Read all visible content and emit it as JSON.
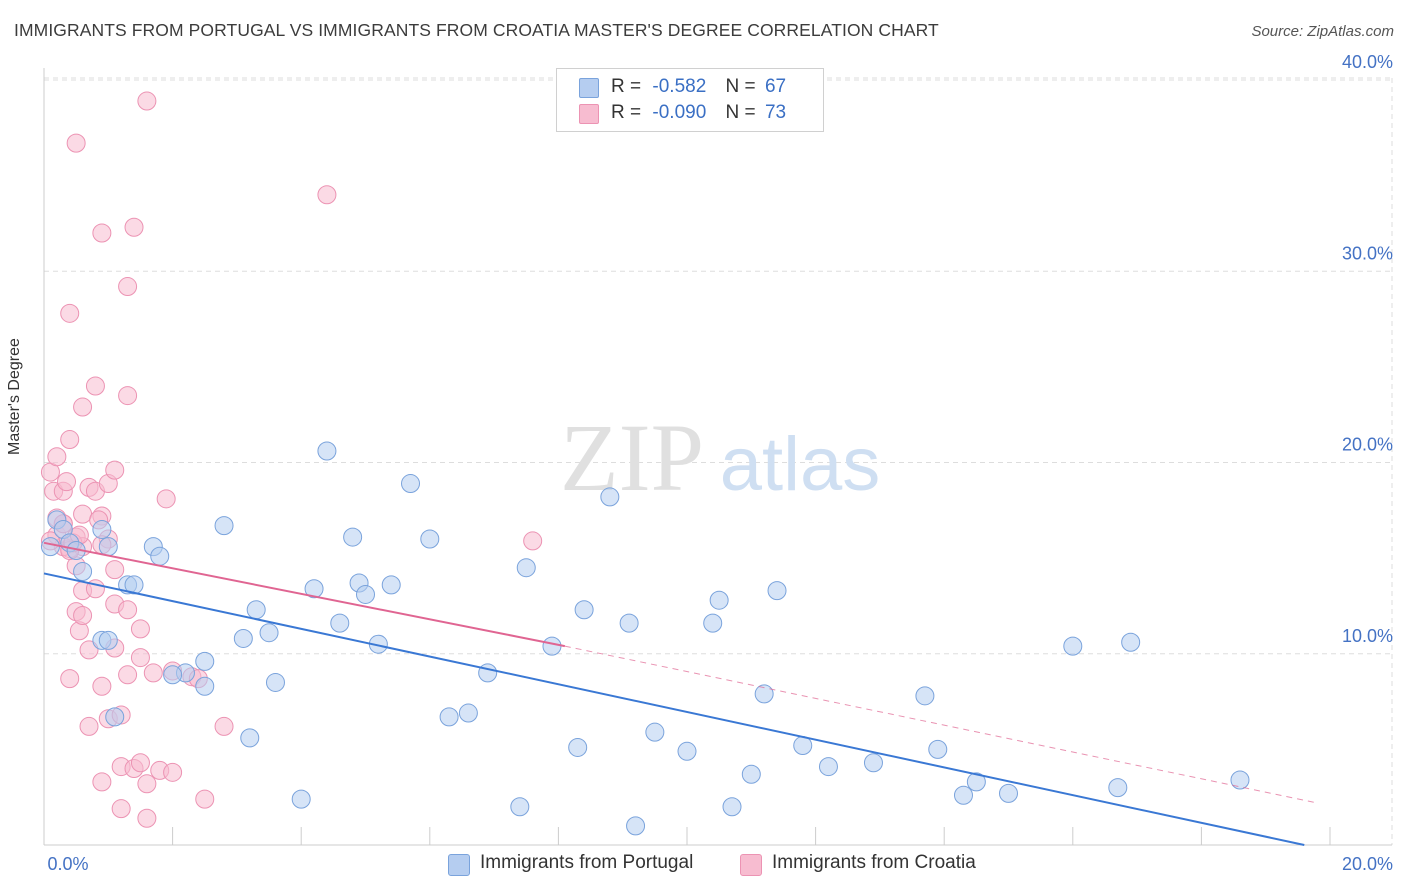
{
  "header": {
    "title": "IMMIGRANTS FROM PORTUGAL VS IMMIGRANTS FROM CROATIA MASTER'S DEGREE CORRELATION CHART",
    "source": "Source: ZipAtlas.com"
  },
  "watermark": {
    "zip": "ZIP",
    "atlas": "atlas"
  },
  "legend": {
    "portugal": {
      "r_label": "R =",
      "r_value": "-0.582",
      "n_label": "N =",
      "n_value": "67"
    },
    "croatia": {
      "r_label": "R =",
      "r_value": "-0.090",
      "n_label": "N =",
      "n_value": "73"
    }
  },
  "colors": {
    "portugal_fill": "#b5cdf0",
    "portugal_stroke": "#7aa3dc",
    "portugal_line": "#3a78d4",
    "croatia_fill": "#f7bcd0",
    "croatia_stroke": "#ec93b3",
    "croatia_line": "#e06592",
    "tick_label": "#4472c4",
    "grid": "#dddddd"
  },
  "chart_data": {
    "type": "scatter",
    "title": "IMMIGRANTS FROM PORTUGAL VS IMMIGRANTS FROM CROATIA MASTER'S DEGREE CORRELATION CHART",
    "xlabel": "",
    "ylabel": "Master's Degree",
    "xlim": [
      0,
      20
    ],
    "ylim": [
      0,
      40
    ],
    "x_tick_labels": [
      "0.0%",
      "20.0%"
    ],
    "y_ticks": [
      10,
      20,
      30,
      40
    ],
    "y_tick_labels": [
      "10.0%",
      "20.0%",
      "30.0%",
      "40.0%"
    ],
    "grid": "horizontal dashed",
    "legend_position": "top-center",
    "series": [
      {
        "name": "Immigrants from Portugal",
        "trend": {
          "x": [
            0,
            19.6
          ],
          "y": [
            14.2,
            0
          ]
        },
        "points": [
          [
            0.1,
            15.6
          ],
          [
            0.2,
            17.0
          ],
          [
            0.3,
            16.5
          ],
          [
            0.4,
            15.8
          ],
          [
            0.5,
            15.4
          ],
          [
            0.6,
            14.3
          ],
          [
            0.9,
            16.5
          ],
          [
            1.0,
            15.6
          ],
          [
            0.9,
            10.7
          ],
          [
            1.0,
            10.7
          ],
          [
            1.3,
            13.6
          ],
          [
            1.4,
            13.6
          ],
          [
            1.7,
            15.6
          ],
          [
            1.8,
            15.1
          ],
          [
            2.2,
            9.0
          ],
          [
            2.5,
            9.6
          ],
          [
            2.8,
            16.7
          ],
          [
            3.1,
            10.8
          ],
          [
            3.3,
            12.3
          ],
          [
            3.5,
            11.1
          ],
          [
            3.6,
            8.5
          ],
          [
            4.2,
            13.4
          ],
          [
            4.4,
            20.6
          ],
          [
            4.6,
            11.6
          ],
          [
            4.8,
            16.1
          ],
          [
            4.9,
            13.7
          ],
          [
            5.0,
            13.1
          ],
          [
            5.2,
            10.5
          ],
          [
            5.4,
            13.6
          ],
          [
            5.7,
            18.9
          ],
          [
            6.0,
            16.0
          ],
          [
            6.3,
            6.7
          ],
          [
            6.6,
            6.9
          ],
          [
            6.9,
            9.0
          ],
          [
            7.4,
            2.0
          ],
          [
            7.5,
            14.5
          ],
          [
            7.9,
            10.4
          ],
          [
            8.3,
            5.1
          ],
          [
            8.4,
            12.3
          ],
          [
            8.8,
            18.2
          ],
          [
            9.1,
            11.6
          ],
          [
            9.2,
            1.0
          ],
          [
            9.5,
            5.9
          ],
          [
            10.0,
            4.9
          ],
          [
            10.4,
            11.6
          ],
          [
            10.5,
            12.8
          ],
          [
            10.7,
            2.0
          ],
          [
            11.0,
            3.7
          ],
          [
            11.2,
            7.9
          ],
          [
            11.4,
            13.3
          ],
          [
            11.8,
            5.2
          ],
          [
            12.2,
            4.1
          ],
          [
            12.9,
            4.3
          ],
          [
            13.7,
            7.8
          ],
          [
            13.9,
            5.0
          ],
          [
            14.3,
            2.6
          ],
          [
            14.5,
            3.3
          ],
          [
            15.0,
            2.7
          ],
          [
            16.0,
            10.4
          ],
          [
            16.7,
            3.0
          ],
          [
            16.9,
            10.6
          ],
          [
            18.6,
            3.4
          ],
          [
            1.1,
            6.7
          ],
          [
            2.0,
            8.9
          ],
          [
            2.5,
            8.3
          ],
          [
            3.2,
            5.6
          ],
          [
            4.0,
            2.4
          ]
        ]
      },
      {
        "name": "Immigrants from Croatia",
        "trend": {
          "x": [
            0,
            8.1
          ],
          "y": [
            15.8,
            10.4
          ]
        },
        "trend_extension": {
          "x": [
            8.1,
            19.8
          ],
          "y": [
            10.4,
            2.2
          ]
        },
        "points": [
          [
            0.1,
            19.5
          ],
          [
            0.15,
            18.5
          ],
          [
            0.2,
            16.2
          ],
          [
            0.3,
            16.8
          ],
          [
            0.4,
            15.5
          ],
          [
            0.5,
            16.1
          ],
          [
            0.6,
            15.6
          ],
          [
            0.7,
            18.7
          ],
          [
            0.8,
            18.5
          ],
          [
            0.9,
            17.2
          ],
          [
            1.0,
            18.9
          ],
          [
            1.1,
            19.6
          ],
          [
            1.0,
            16.0
          ],
          [
            0.9,
            15.7
          ],
          [
            0.6,
            13.3
          ],
          [
            0.8,
            13.4
          ],
          [
            0.5,
            12.2
          ],
          [
            0.55,
            11.2
          ],
          [
            0.6,
            12.0
          ],
          [
            1.1,
            12.6
          ],
          [
            1.3,
            12.3
          ],
          [
            1.5,
            11.3
          ],
          [
            0.9,
            8.3
          ],
          [
            0.4,
            8.7
          ],
          [
            0.7,
            6.2
          ],
          [
            1.0,
            6.6
          ],
          [
            1.2,
            6.8
          ],
          [
            1.3,
            8.9
          ],
          [
            1.5,
            9.8
          ],
          [
            1.7,
            9.0
          ],
          [
            2.3,
            8.8
          ],
          [
            2.8,
            6.2
          ],
          [
            0.9,
            3.3
          ],
          [
            1.2,
            4.1
          ],
          [
            1.4,
            4.0
          ],
          [
            1.5,
            4.3
          ],
          [
            1.6,
            3.2
          ],
          [
            1.8,
            3.9
          ],
          [
            2.0,
            3.8
          ],
          [
            2.5,
            2.4
          ],
          [
            1.6,
            1.4
          ],
          [
            1.2,
            1.9
          ],
          [
            0.5,
            36.7
          ],
          [
            1.6,
            38.9
          ],
          [
            0.9,
            32.0
          ],
          [
            1.4,
            32.3
          ],
          [
            1.3,
            29.2
          ],
          [
            0.4,
            27.8
          ],
          [
            0.8,
            24.0
          ],
          [
            1.3,
            23.5
          ],
          [
            0.6,
            22.9
          ],
          [
            0.4,
            21.2
          ],
          [
            0.2,
            20.3
          ],
          [
            1.9,
            18.1
          ],
          [
            4.4,
            34.0
          ],
          [
            7.6,
            15.9
          ],
          [
            0.3,
            15.6
          ],
          [
            0.5,
            14.6
          ],
          [
            0.3,
            18.5
          ],
          [
            0.2,
            17.1
          ],
          [
            0.1,
            15.9
          ],
          [
            0.6,
            17.3
          ],
          [
            1.1,
            14.4
          ],
          [
            2.0,
            9.1
          ],
          [
            2.4,
            8.7
          ],
          [
            0.7,
            10.2
          ],
          [
            1.1,
            10.3
          ],
          [
            0.4,
            15.4
          ],
          [
            0.3,
            16.8
          ],
          [
            0.35,
            19.0
          ],
          [
            0.45,
            15.8
          ],
          [
            0.55,
            16.2
          ],
          [
            0.85,
            17.0
          ]
        ]
      }
    ]
  },
  "bottom_legend": {
    "portugal": "Immigrants from Portugal",
    "croatia": "Immigrants from Croatia"
  }
}
